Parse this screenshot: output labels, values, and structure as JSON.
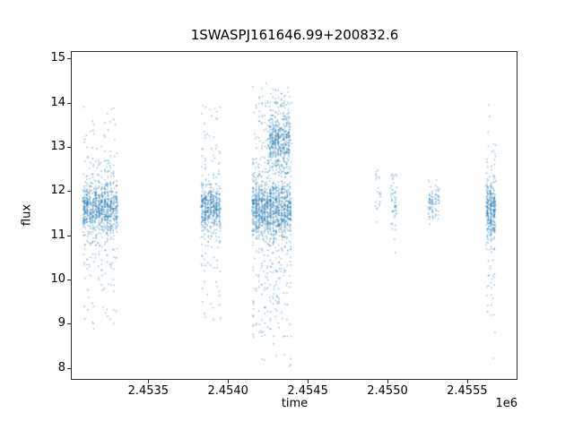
{
  "chart_data": {
    "type": "scatter",
    "title": "1SWASPJ161646.99+200832.6",
    "xlabel": "time",
    "ylabel": "flux",
    "x_offset_label": "1e6",
    "xlim": [
      2453020,
      2455810
    ],
    "ylim": [
      7.75,
      15.15
    ],
    "xticks": [
      {
        "value": 2453500,
        "label": "2.4535"
      },
      {
        "value": 2454000,
        "label": "2.4540"
      },
      {
        "value": 2454500,
        "label": "2.4545"
      },
      {
        "value": 2455000,
        "label": "2.4550"
      },
      {
        "value": 2455500,
        "label": "2.4555"
      }
    ],
    "yticks": [
      {
        "value": 8,
        "label": "8"
      },
      {
        "value": 9,
        "label": "9"
      },
      {
        "value": 10,
        "label": "10"
      },
      {
        "value": 11,
        "label": "11"
      },
      {
        "value": 12,
        "label": "12"
      },
      {
        "value": 13,
        "label": "13"
      },
      {
        "value": 14,
        "label": "14"
      },
      {
        "value": 15,
        "label": "15"
      }
    ],
    "marker_color": "#1f77b4",
    "marker_alpha": 0.5,
    "marker_size": 1.4,
    "grid": false,
    "legend": "none",
    "seed": 7,
    "night_spacing": 18,
    "clusters": [
      {
        "x_min": 2453090,
        "x_max": 2453310,
        "n": 1000,
        "components": [
          {
            "frac": 0.72,
            "dist": "normal",
            "mean": 11.62,
            "sd": 0.27,
            "clip": [
              10.6,
              12.6
            ]
          },
          {
            "frac": 0.18,
            "dist": "normal",
            "mean": 11.6,
            "sd": 0.85,
            "clip": [
              9.0,
              13.9
            ]
          },
          {
            "frac": 0.08,
            "dist": "uniform",
            "min": 9.0,
            "max": 13.9
          },
          {
            "frac": 0.02,
            "dist": "uniform",
            "min": 8.4,
            "max": 14.9
          }
        ]
      },
      {
        "x_min": 2453830,
        "x_max": 2453955,
        "n": 550,
        "components": [
          {
            "frac": 0.72,
            "dist": "normal",
            "mean": 11.6,
            "sd": 0.25,
            "clip": [
              10.7,
              12.4
            ]
          },
          {
            "frac": 0.18,
            "dist": "normal",
            "mean": 11.7,
            "sd": 0.85,
            "clip": [
              9.0,
              13.9
            ]
          },
          {
            "frac": 0.08,
            "dist": "uniform",
            "min": 9.0,
            "max": 14.0
          },
          {
            "frac": 0.02,
            "dist": "uniform",
            "min": 8.9,
            "max": 14.55
          }
        ]
      },
      {
        "x_min": 2454150,
        "x_max": 2454400,
        "n": 1500,
        "components": [
          {
            "frac": 0.58,
            "dist": "normal",
            "mean": 11.6,
            "sd": 0.3,
            "clip": [
              10.5,
              12.6
            ]
          },
          {
            "frac": 0.2,
            "dist": "normal",
            "mean": 11.6,
            "sd": 1.0,
            "clip": [
              8.7,
              14.0
            ]
          },
          {
            "frac": 0.15,
            "dist": "uniform",
            "min": 8.7,
            "max": 14.2
          },
          {
            "frac": 0.07,
            "dist": "uniform",
            "min": 8.0,
            "max": 14.6
          }
        ]
      },
      {
        "x_min": 2454255,
        "x_max": 2454390,
        "n": 450,
        "components": [
          {
            "frac": 0.85,
            "dist": "normal",
            "mean": 13.15,
            "sd": 0.3,
            "clip": [
              12.4,
              14.0
            ]
          },
          {
            "frac": 0.15,
            "dist": "uniform",
            "min": 12.4,
            "max": 14.35
          }
        ]
      },
      {
        "x_min": 2454925,
        "x_max": 2454960,
        "n": 22,
        "components": [
          {
            "frac": 0.9,
            "dist": "normal",
            "mean": 11.95,
            "sd": 0.35,
            "clip": [
              11.3,
              12.6
            ]
          },
          {
            "frac": 0.1,
            "dist": "uniform",
            "min": 11.3,
            "max": 12.65
          }
        ]
      },
      {
        "x_min": 2455020,
        "x_max": 2455060,
        "n": 55,
        "components": [
          {
            "frac": 0.88,
            "dist": "normal",
            "mean": 11.8,
            "sd": 0.3,
            "clip": [
              11.1,
              12.5
            ]
          },
          {
            "frac": 0.12,
            "dist": "uniform",
            "min": 10.35,
            "max": 12.6
          }
        ]
      },
      {
        "x_min": 2455255,
        "x_max": 2455330,
        "n": 90,
        "components": [
          {
            "frac": 0.95,
            "dist": "normal",
            "mean": 11.75,
            "sd": 0.22,
            "clip": [
              11.25,
              12.25
            ]
          },
          {
            "frac": 0.05,
            "dist": "uniform",
            "min": 11.2,
            "max": 12.3
          }
        ]
      },
      {
        "x_min": 2455618,
        "x_max": 2455680,
        "n": 380,
        "components": [
          {
            "frac": 0.7,
            "dist": "normal",
            "mean": 11.6,
            "sd": 0.27,
            "clip": [
              10.8,
              12.4
            ]
          },
          {
            "frac": 0.2,
            "dist": "normal",
            "mean": 11.6,
            "sd": 0.8,
            "clip": [
              9.2,
              13.2
            ]
          },
          {
            "frac": 0.08,
            "dist": "uniform",
            "min": 9.1,
            "max": 13.3
          },
          {
            "frac": 0.02,
            "dist": "uniform",
            "min": 8.2,
            "max": 14.65
          }
        ]
      }
    ]
  }
}
